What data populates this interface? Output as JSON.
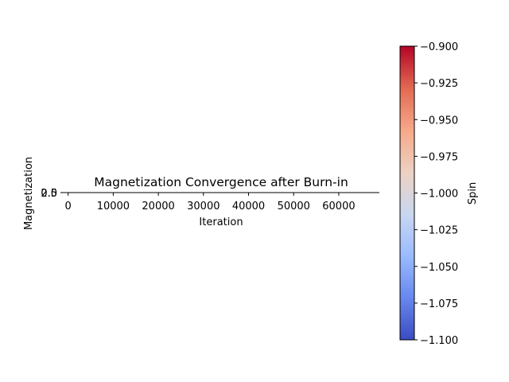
{
  "chart_data": [
    {
      "type": "line",
      "title": "Magnetization Convergence after Burn-in",
      "xlabel": "Iteration",
      "ylabel": "Magnetization",
      "xlim": [
        -1000,
        69000
      ],
      "ylim": [
        0,
        0.004
      ],
      "x_ticks": [
        0,
        10000,
        20000,
        30000,
        40000,
        50000,
        60000
      ],
      "x_tick_labels": [
        "0",
        "10000",
        "20000",
        "30000",
        "40000",
        "50000",
        "60000"
      ],
      "y_tick_labels_overlapping": [
        "0.0",
        "2.5"
      ],
      "grid": false,
      "series": []
    },
    {
      "type": "colorbar",
      "label": "Spin",
      "colormap": "coolwarm",
      "range": [
        -1.1,
        -0.9
      ],
      "ticks": [
        -0.9,
        -0.925,
        -0.95,
        -0.975,
        -1.0,
        -1.025,
        -1.05,
        -1.075,
        -1.1
      ],
      "tick_labels": [
        "−0.900",
        "−0.925",
        "−0.950",
        "−0.975",
        "−1.000",
        "−1.025",
        "−1.050",
        "−1.075",
        "−1.100"
      ],
      "colors": [
        "#3b4cc0",
        "#6788ee",
        "#9abbff",
        "#c9d7f0",
        "#edd1c2",
        "#f7a889",
        "#e26952",
        "#b40426"
      ]
    }
  ]
}
